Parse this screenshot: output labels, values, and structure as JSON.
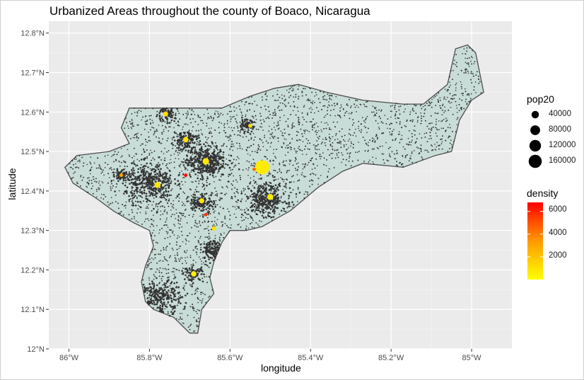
{
  "chart_data": {
    "type": "scatter",
    "title": "Urbanized Areas throughout the county of Boaco, Nicaragua",
    "xlabel": "longitude",
    "ylabel": "latitude",
    "xlim": [
      -86.05,
      -84.9
    ],
    "ylim": [
      12.0,
      12.83
    ],
    "x_ticks": [
      -86.0,
      -85.8,
      -85.6,
      -85.4,
      -85.2,
      -85.0
    ],
    "x_tick_labels": [
      "86°W",
      "85.8°W",
      "85.6°W",
      "85.4°W",
      "85.2°W",
      "85°W"
    ],
    "y_ticks": [
      12.0,
      12.1,
      12.2,
      12.3,
      12.4,
      12.5,
      12.6,
      12.7,
      12.8
    ],
    "y_tick_labels": [
      "12°N",
      "12.1°N",
      "12.2°N",
      "12.3°N",
      "12.4°N",
      "12.5°N",
      "12.6°N",
      "12.7°N",
      "12.8°N"
    ],
    "grid": true,
    "background": "#ebebeb",
    "map_fill": "#c8ddd8",
    "map_border": "#4d4d4d",
    "point_color": "#333333",
    "boundary": [
      [
        -85.85,
        12.52
      ],
      [
        -85.87,
        12.56
      ],
      [
        -85.85,
        12.61
      ],
      [
        -85.72,
        12.61
      ],
      [
        -85.62,
        12.61
      ],
      [
        -85.55,
        12.64
      ],
      [
        -85.49,
        12.66
      ],
      [
        -85.43,
        12.67
      ],
      [
        -85.36,
        12.65
      ],
      [
        -85.27,
        12.63
      ],
      [
        -85.17,
        12.62
      ],
      [
        -85.12,
        12.62
      ],
      [
        -85.06,
        12.67
      ],
      [
        -85.04,
        12.76
      ],
      [
        -85.01,
        12.77
      ],
      [
        -84.99,
        12.75
      ],
      [
        -84.97,
        12.65
      ],
      [
        -85.0,
        12.63
      ],
      [
        -85.03,
        12.58
      ],
      [
        -85.04,
        12.54
      ],
      [
        -85.05,
        12.5
      ],
      [
        -85.09,
        12.49
      ],
      [
        -85.17,
        12.46
      ],
      [
        -85.27,
        12.47
      ],
      [
        -85.32,
        12.45
      ],
      [
        -85.38,
        12.41
      ],
      [
        -85.45,
        12.35
      ],
      [
        -85.52,
        12.31
      ],
      [
        -85.56,
        12.3
      ],
      [
        -85.6,
        12.3
      ],
      [
        -85.62,
        12.27
      ],
      [
        -85.64,
        12.22
      ],
      [
        -85.65,
        12.18
      ],
      [
        -85.64,
        12.14
      ],
      [
        -85.67,
        12.1
      ],
      [
        -85.68,
        12.04
      ],
      [
        -85.7,
        12.04
      ],
      [
        -85.74,
        12.08
      ],
      [
        -85.79,
        12.1
      ],
      [
        -85.81,
        12.12
      ],
      [
        -85.82,
        12.17
      ],
      [
        -85.81,
        12.21
      ],
      [
        -85.79,
        12.26
      ],
      [
        -85.8,
        12.3
      ],
      [
        -85.84,
        12.32
      ],
      [
        -85.89,
        12.35
      ],
      [
        -85.93,
        12.38
      ],
      [
        -85.99,
        12.42
      ],
      [
        -86.01,
        12.46
      ],
      [
        -85.98,
        12.49
      ],
      [
        -85.9,
        12.5
      ]
    ],
    "urban_centers": [
      {
        "lon": -85.66,
        "lat": 12.475,
        "spread": 0.025,
        "n": 380,
        "pop20": 60000,
        "density": 2200
      },
      {
        "lon": -85.8,
        "lat": 12.42,
        "spread": 0.03,
        "n": 360,
        "pop20": 30000,
        "density": 1200
      },
      {
        "lon": -85.51,
        "lat": 12.38,
        "spread": 0.025,
        "n": 300,
        "pop20": 40000,
        "density": 1500
      },
      {
        "lon": -85.85,
        "lat": 12.14,
        "spread": 0.02,
        "n": 260,
        "pop20": 8000,
        "density": 500
      },
      {
        "lon": -85.77,
        "lat": 12.13,
        "spread": 0.025,
        "n": 220,
        "pop20": 6000,
        "density": 400
      },
      {
        "lon": -85.64,
        "lat": 12.25,
        "spread": 0.015,
        "n": 150,
        "pop20": 8000,
        "density": 500
      },
      {
        "lon": -85.67,
        "lat": 12.37,
        "spread": 0.015,
        "n": 120,
        "pop20": 15000,
        "density": 800
      },
      {
        "lon": -85.71,
        "lat": 12.53,
        "spread": 0.015,
        "n": 120,
        "pop20": 15000,
        "density": 800
      },
      {
        "lon": -85.76,
        "lat": 12.595,
        "spread": 0.012,
        "n": 80,
        "pop20": 9000,
        "density": 600
      },
      {
        "lon": -85.56,
        "lat": 12.565,
        "spread": 0.01,
        "n": 60,
        "pop20": 4000,
        "density": 300
      },
      {
        "lon": -85.69,
        "lat": 12.19,
        "spread": 0.012,
        "n": 80,
        "pop20": 12000,
        "density": 700
      },
      {
        "lon": -85.87,
        "lat": 12.44,
        "spread": 0.01,
        "n": 60,
        "pop20": 5000,
        "density": 1600
      }
    ],
    "highlight_points": [
      {
        "lon": -85.52,
        "lat": 12.46,
        "pop20": 170000,
        "density": 500
      },
      {
        "lon": -85.66,
        "lat": 12.475,
        "pop20": 25000,
        "density": 600
      },
      {
        "lon": -85.78,
        "lat": 12.415,
        "pop20": 20000,
        "density": 700
      },
      {
        "lon": -85.5,
        "lat": 12.385,
        "pop20": 20000,
        "density": 500
      },
      {
        "lon": -85.71,
        "lat": 12.53,
        "pop20": 15000,
        "density": 800
      },
      {
        "lon": -85.76,
        "lat": 12.595,
        "pop20": 12000,
        "density": 900
      },
      {
        "lon": -85.67,
        "lat": 12.375,
        "pop20": 12000,
        "density": 700
      },
      {
        "lon": -85.69,
        "lat": 12.19,
        "pop20": 15000,
        "density": 500
      },
      {
        "lon": -85.64,
        "lat": 12.305,
        "pop20": 8000,
        "density": 800
      },
      {
        "lon": -85.55,
        "lat": 12.565,
        "pop20": 5000,
        "density": 900
      },
      {
        "lon": -85.87,
        "lat": 12.44,
        "pop20": 4000,
        "density": 2400
      },
      {
        "lon": -85.71,
        "lat": 12.44,
        "pop20": 4000,
        "density": 6500
      },
      {
        "lon": -85.66,
        "lat": 12.34,
        "pop20": 3000,
        "density": 5500
      },
      {
        "lon": -85.54,
        "lat": 12.455,
        "pop20": 3000,
        "density": 4000
      }
    ],
    "legend_pop": {
      "title": "pop20",
      "breaks": [
        40000,
        80000,
        120000,
        160000
      ],
      "labels": [
        "40000",
        "80000",
        "120000",
        "160000"
      ]
    },
    "legend_density": {
      "title": "density",
      "low_color": "#ffff00",
      "high_color": "#ff0000",
      "range": [
        0,
        6800
      ],
      "breaks": [
        2000,
        4000,
        6000
      ],
      "labels": [
        "2000",
        "4000",
        "6000"
      ]
    }
  }
}
